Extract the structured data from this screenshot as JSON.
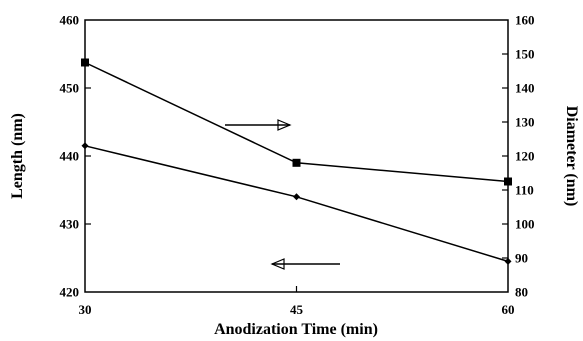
{
  "chart_data": {
    "type": "line",
    "x": [
      30,
      45,
      60
    ],
    "xlabel": "Anodization Time (min)",
    "xlim": [
      30,
      60
    ],
    "xticks": [
      "30",
      "45",
      "60"
    ],
    "ylabel_left": "Length (nm)",
    "ylim_left": [
      420,
      460
    ],
    "yticks_left": [
      "420",
      "430",
      "440",
      "450",
      "460"
    ],
    "ylabel_right": "Diameter (nm)",
    "ylim_right": [
      80,
      160
    ],
    "yticks_right": [
      "80",
      "90",
      "100",
      "110",
      "120",
      "130",
      "140",
      "150",
      "160"
    ],
    "grid": false,
    "series": [
      {
        "axis": "right",
        "marker": "square",
        "color": "#000000",
        "values": [
          147.5,
          118,
          112.5
        ]
      },
      {
        "axis": "left",
        "marker": "diamond",
        "color": "#000000",
        "values": [
          441.5,
          434,
          424.5
        ]
      }
    ],
    "annotations": [
      {
        "kind": "arrow",
        "direction": "right",
        "points_to": "right-axis"
      },
      {
        "kind": "arrow",
        "direction": "left",
        "points_to": "left-axis"
      }
    ]
  }
}
